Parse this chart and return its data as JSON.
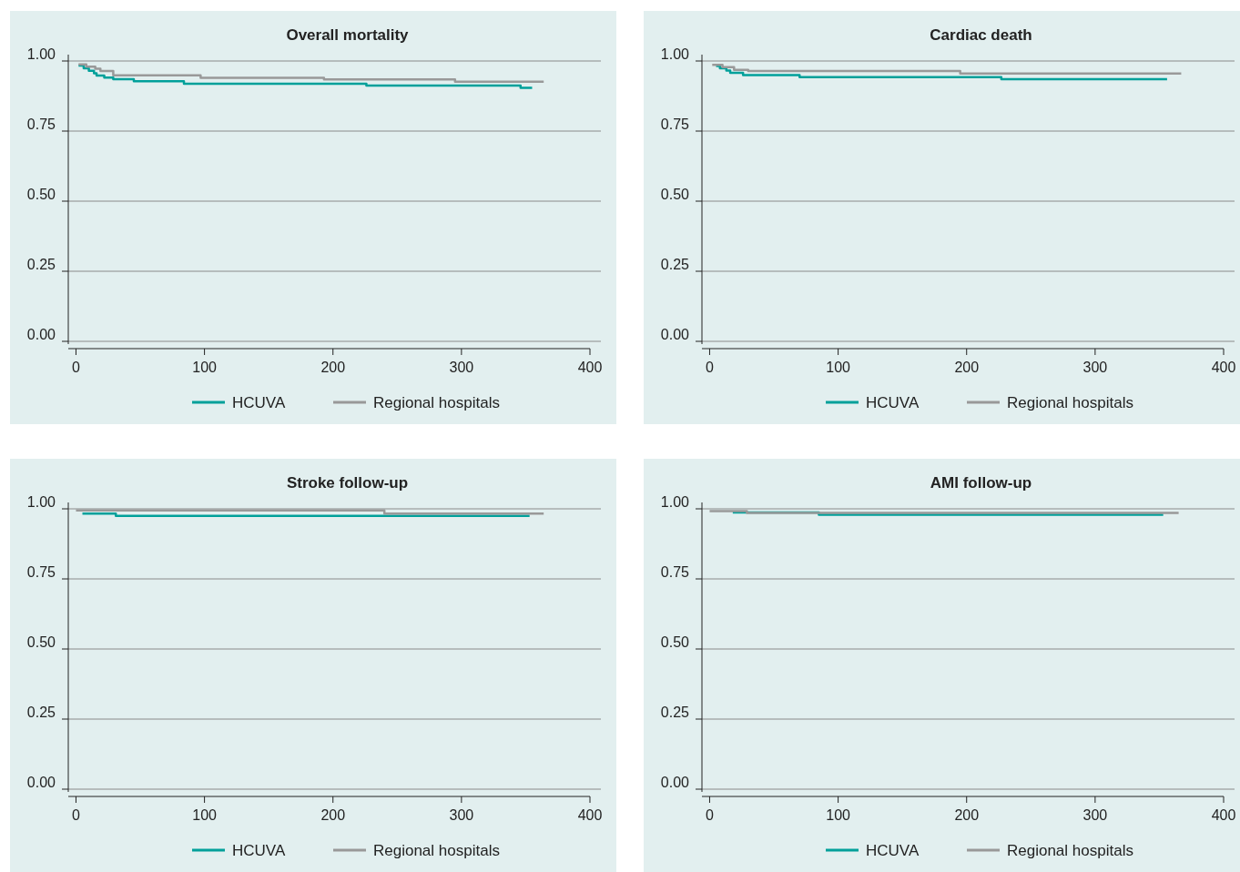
{
  "chart_data": [
    {
      "type": "step",
      "title": "Overall mortality",
      "xlim": [
        -6,
        400
      ],
      "xticks": [
        0,
        100,
        200,
        300,
        400
      ],
      "ylim": [
        0,
        1
      ],
      "yticks": [
        {
          "value": 0,
          "label": "0.00"
        },
        {
          "value": 0.25,
          "label": "0.25"
        },
        {
          "value": 0.5,
          "label": "0.50"
        },
        {
          "value": 0.75,
          "label": "0.75"
        },
        {
          "value": 1,
          "label": "1.00"
        }
      ],
      "grid": "y",
      "legend": "bottom",
      "series": [
        {
          "name": "HCUVA",
          "color": "#00a09a",
          "x": [
            2,
            6,
            10,
            14,
            16,
            22,
            29,
            45,
            84,
            226,
            346,
            355
          ],
          "values": [
            0.984,
            0.974,
            0.965,
            0.956,
            0.948,
            0.941,
            0.935,
            0.928,
            0.919,
            0.912,
            0.904,
            0.904
          ]
        },
        {
          "name": "Regional hospitals",
          "color": "#999999",
          "x": [
            2,
            8,
            15,
            19,
            29,
            97,
            193,
            295,
            364
          ],
          "values": [
            0.988,
            0.98,
            0.972,
            0.964,
            0.949,
            0.94,
            0.934,
            0.926,
            0.926
          ]
        }
      ]
    },
    {
      "type": "step",
      "title": "Cardiac death",
      "xlim": [
        -6,
        400
      ],
      "xticks": [
        0,
        100,
        200,
        300,
        400
      ],
      "ylim": [
        0,
        1
      ],
      "yticks": [
        {
          "value": 0,
          "label": "0.00"
        },
        {
          "value": 0.25,
          "label": "0.25"
        },
        {
          "value": 0.5,
          "label": "0.50"
        },
        {
          "value": 0.75,
          "label": "0.75"
        },
        {
          "value": 1,
          "label": "1.00"
        }
      ],
      "grid": "y",
      "legend": "bottom",
      "series": [
        {
          "name": "HCUVA",
          "color": "#00a09a",
          "x": [
            5,
            8,
            13,
            16,
            26,
            70,
            227,
            356
          ],
          "values": [
            0.982,
            0.974,
            0.966,
            0.958,
            0.95,
            0.942,
            0.935,
            0.935
          ]
        },
        {
          "name": "Regional hospitals",
          "color": "#999999",
          "x": [
            2,
            10,
            19,
            30,
            195,
            367
          ],
          "values": [
            0.986,
            0.978,
            0.968,
            0.964,
            0.955,
            0.955
          ]
        }
      ]
    },
    {
      "type": "step",
      "title": "Stroke follow-up",
      "xlim": [
        -6,
        400
      ],
      "xticks": [
        0,
        100,
        200,
        300,
        400
      ],
      "ylim": [
        0,
        1
      ],
      "yticks": [
        {
          "value": 0,
          "label": "0.00"
        },
        {
          "value": 0.25,
          "label": "0.25"
        },
        {
          "value": 0.5,
          "label": "0.50"
        },
        {
          "value": 0.75,
          "label": "0.75"
        },
        {
          "value": 1,
          "label": "1.00"
        }
      ],
      "grid": "y",
      "legend": "bottom",
      "series": [
        {
          "name": "HCUVA",
          "color": "#00a09a",
          "x": [
            5,
            31,
            353
          ],
          "values": [
            0.983,
            0.975,
            0.975
          ]
        },
        {
          "name": "Regional hospitals",
          "color": "#999999",
          "x": [
            0,
            240,
            364
          ],
          "values": [
            0.994,
            0.983,
            0.983
          ]
        }
      ]
    },
    {
      "type": "step",
      "title": "AMI follow-up",
      "xlim": [
        -6,
        400
      ],
      "xticks": [
        0,
        100,
        200,
        300,
        400
      ],
      "ylim": [
        0,
        1
      ],
      "yticks": [
        {
          "value": 0,
          "label": "0.00"
        },
        {
          "value": 0.25,
          "label": "0.25"
        },
        {
          "value": 0.5,
          "label": "0.50"
        },
        {
          "value": 0.75,
          "label": "0.75"
        },
        {
          "value": 1,
          "label": "1.00"
        }
      ],
      "grid": "y",
      "legend": "bottom",
      "series": [
        {
          "name": "HCUVA",
          "color": "#00a09a",
          "x": [
            18,
            85,
            353
          ],
          "values": [
            0.987,
            0.979,
            0.979
          ]
        },
        {
          "name": "Regional hospitals",
          "color": "#999999",
          "x": [
            0,
            29,
            365
          ],
          "values": [
            0.992,
            0.985,
            0.985
          ]
        }
      ]
    }
  ]
}
